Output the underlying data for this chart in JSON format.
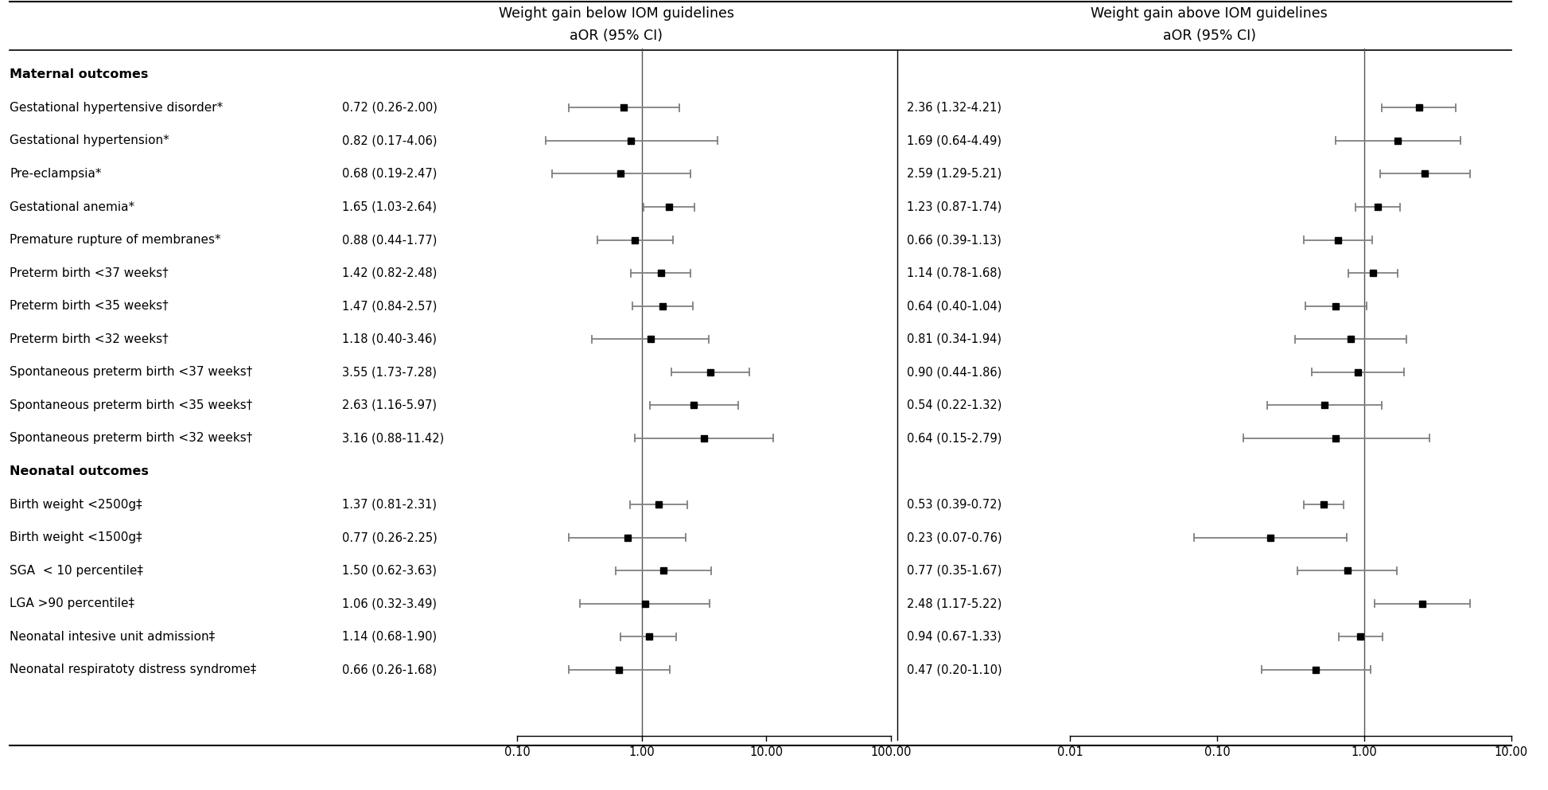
{
  "labels": [
    "Gestational hypertensive disorder*",
    "Gestational hypertension*",
    "Pre-eclampsia*",
    "Gestational anemia*",
    "Premature rupture of membranes*",
    "Preterm birth <37 weeks†",
    "Preterm birth <35 weeks†",
    "Preterm birth <32 weeks†",
    "Spontaneous preterm birth <37 weeks†",
    "Spontaneous preterm birth <35 weeks†",
    "Spontaneous preterm birth <32 weeks†",
    "Birth weight <2500g‡",
    "Birth weight <1500g‡",
    "SGA  < 10 percentile‡",
    "LGA >90 percentile‡",
    "Neonatal intesive unit admission‡",
    "Neonatal respiratoty distress syndrome‡"
  ],
  "below_or": [
    0.72,
    0.82,
    0.68,
    1.65,
    0.88,
    1.42,
    1.47,
    1.18,
    3.55,
    2.63,
    3.16,
    1.37,
    0.77,
    1.5,
    1.06,
    1.14,
    0.66
  ],
  "below_lo": [
    0.26,
    0.17,
    0.19,
    1.03,
    0.44,
    0.82,
    0.84,
    0.4,
    1.73,
    1.16,
    0.88,
    0.81,
    0.26,
    0.62,
    0.32,
    0.68,
    0.26
  ],
  "below_hi": [
    2.0,
    4.06,
    2.47,
    2.64,
    1.77,
    2.48,
    2.57,
    3.46,
    7.28,
    5.97,
    11.42,
    2.31,
    2.25,
    3.63,
    3.49,
    1.9,
    1.68
  ],
  "below_ci_text": [
    "0.72 (0.26-2.00)",
    "0.82 (0.17-4.06)",
    "0.68 (0.19-2.47)",
    "1.65 (1.03-2.64)",
    "0.88 (0.44-1.77)",
    "1.42 (0.82-2.48)",
    "1.47 (0.84-2.57)",
    "1.18 (0.40-3.46)",
    "3.55 (1.73-7.28)",
    "2.63 (1.16-5.97)",
    "3.16 (0.88-11.42)",
    "1.37 (0.81-2.31)",
    "0.77 (0.26-2.25)",
    "1.50 (0.62-3.63)",
    "1.06 (0.32-3.49)",
    "1.14 (0.68-1.90)",
    "0.66 (0.26-1.68)"
  ],
  "above_or": [
    2.36,
    1.69,
    2.59,
    1.23,
    0.66,
    1.14,
    0.64,
    0.81,
    0.9,
    0.54,
    0.64,
    0.53,
    0.23,
    0.77,
    2.48,
    0.94,
    0.47
  ],
  "above_lo": [
    1.32,
    0.64,
    1.29,
    0.87,
    0.39,
    0.78,
    0.4,
    0.34,
    0.44,
    0.22,
    0.15,
    0.39,
    0.07,
    0.35,
    1.17,
    0.67,
    0.2
  ],
  "above_hi": [
    4.21,
    4.49,
    5.21,
    1.74,
    1.13,
    1.68,
    1.04,
    1.94,
    1.86,
    1.32,
    2.79,
    0.72,
    0.76,
    1.67,
    5.22,
    1.33,
    1.1
  ],
  "above_ci_text": [
    "2.36 (1.32-4.21)",
    "1.69 (0.64-4.49)",
    "2.59 (1.29-5.21)",
    "1.23 (0.87-1.74)",
    "0.66 (0.39-1.13)",
    "1.14 (0.78-1.68)",
    "0.64 (0.40-1.04)",
    "0.81 (0.34-1.94)",
    "0.90 (0.44-1.86)",
    "0.54 (0.22-1.32)",
    "0.64 (0.15-2.79)",
    "0.53 (0.39-0.72)",
    "0.23 (0.07-0.76)",
    "0.77 (0.35-1.67)",
    "2.48 (1.17-5.22)",
    "0.94 (0.67-1.33)",
    "0.47 (0.20-1.10)"
  ],
  "below_title_line1": "Weight gain below IOM guidelines",
  "below_title_line2": "aOR (95% CI)",
  "above_title_line1": "Weight gain above IOM guidelines",
  "above_title_line2": "aOR (95% CI)",
  "marker_color": "#000000",
  "line_color": "#808080"
}
